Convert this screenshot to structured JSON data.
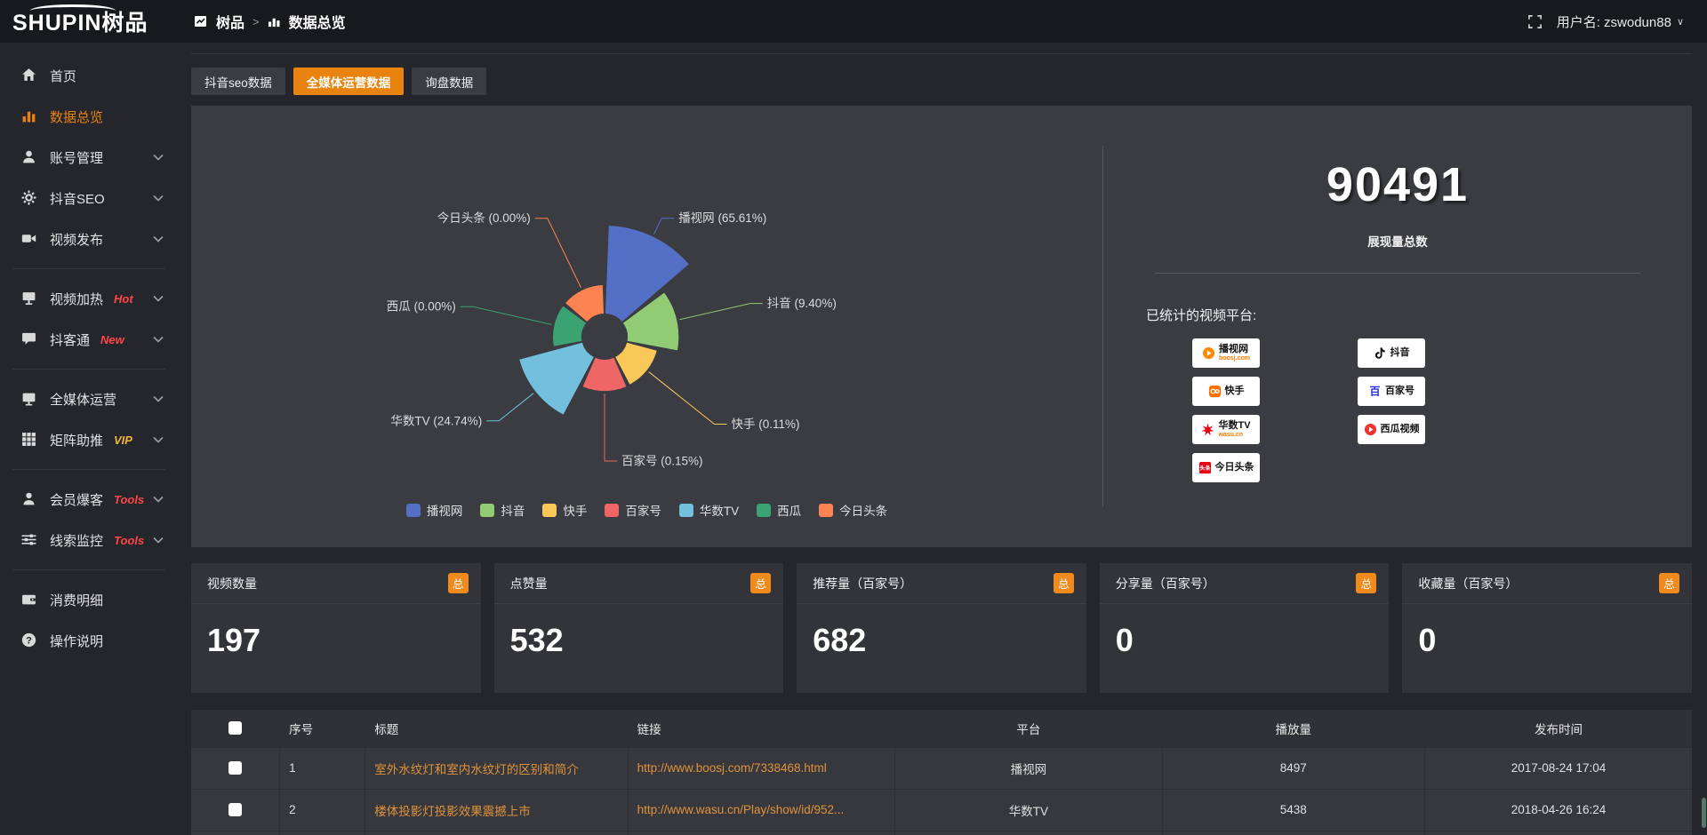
{
  "topbar": {
    "logo": "SHUPIN树品",
    "breadcrumb_root": "树品",
    "breadcrumb_current": "数据总览",
    "username_label": "用户名: zswodun88"
  },
  "sidebar": {
    "items": [
      {
        "label": "首页",
        "icon": "home-icon",
        "active": false,
        "expandable": false
      },
      {
        "label": "数据总览",
        "icon": "bar-chart-icon",
        "active": true,
        "expandable": false
      },
      {
        "label": "账号管理",
        "icon": "user-icon",
        "expandable": true
      },
      {
        "label": "抖音SEO",
        "icon": "gear-icon",
        "expandable": true
      },
      {
        "label": "视频发布",
        "icon": "video-icon",
        "expandable": true,
        "divider_after": true
      },
      {
        "label": "视频加热",
        "icon": "screen-icon",
        "tag": "Hot",
        "tag_color": "#ff4545",
        "expandable": true
      },
      {
        "label": "抖客通",
        "icon": "chat-icon",
        "tag": "New",
        "tag_color": "#ff4545",
        "expandable": true,
        "divider_after": true
      },
      {
        "label": "全媒体运营",
        "icon": "monitor-icon",
        "expandable": true
      },
      {
        "label": "矩阵助推",
        "icon": "grid-icon",
        "tag": "VIP",
        "tag_color": "#f0b63c",
        "expandable": true,
        "divider_after": true
      },
      {
        "label": "会员爆客",
        "icon": "person-icon",
        "tag": "Tools",
        "tag_color": "#ff4545",
        "expandable": true
      },
      {
        "label": "线索监控",
        "icon": "sliders-icon",
        "tag": "Tools",
        "tag_color": "#ff4545",
        "expandable": true,
        "divider_after": true
      },
      {
        "label": "消费明细",
        "icon": "wallet-icon",
        "expandable": false
      },
      {
        "label": "操作说明",
        "icon": "question-icon",
        "expandable": false
      }
    ]
  },
  "tabs": [
    {
      "label": "抖音seo数据",
      "active": false
    },
    {
      "label": "全媒体运营数据",
      "active": true
    },
    {
      "label": "询盘数据",
      "active": false
    }
  ],
  "chart_data": {
    "type": "pie",
    "variant": "nightingale-rose",
    "legend_position": "bottom",
    "label_format": "name (percent%)",
    "items": [
      {
        "name": "播视网",
        "percent": 65.61,
        "color": "#5470c6"
      },
      {
        "name": "抖音",
        "percent": 9.4,
        "color": "#91cc75"
      },
      {
        "name": "快手",
        "percent": 0.11,
        "color": "#fac858"
      },
      {
        "name": "百家号",
        "percent": 0.15,
        "color": "#ee6666"
      },
      {
        "name": "华数TV",
        "percent": 24.74,
        "color": "#73c0de"
      },
      {
        "name": "西瓜",
        "percent": 0.0,
        "color": "#3ba272"
      },
      {
        "name": "今日头条",
        "percent": 0.0,
        "color": "#fc8452"
      }
    ],
    "legend": [
      "播视网",
      "抖音",
      "快手",
      "百家号",
      "华数TV",
      "西瓜",
      "今日头条"
    ]
  },
  "summary": {
    "total_value": "90491",
    "total_label": "展现量总数",
    "platforms_label": "已统计的视频平台:",
    "platforms": [
      {
        "name": "播视网",
        "sub": "boosj.com",
        "icon": "boosj-logo-icon"
      },
      {
        "name": "抖音",
        "sub": "",
        "icon": "douyin-logo-icon"
      },
      {
        "name": "快手",
        "sub": "",
        "icon": "kuaishou-logo-icon"
      },
      {
        "name": "百家号",
        "sub": "",
        "icon": "baijiahao-logo-icon"
      },
      {
        "name": "华数TV",
        "sub": "wasu.cn",
        "icon": "wasu-logo-icon"
      },
      {
        "name": "西瓜视频",
        "sub": "",
        "icon": "xigua-logo-icon"
      },
      {
        "name": "今日头条",
        "sub": "",
        "icon": "toutiao-logo-icon"
      }
    ]
  },
  "stat_cards": [
    {
      "title": "视频数量",
      "badge": "总",
      "value": "197"
    },
    {
      "title": "点赞量",
      "badge": "总",
      "value": "532"
    },
    {
      "title": "推荐量（百家号）",
      "badge": "总",
      "value": "682"
    },
    {
      "title": "分享量（百家号）",
      "badge": "总",
      "value": "0"
    },
    {
      "title": "收藏量（百家号）",
      "badge": "总",
      "value": "0"
    }
  ],
  "table": {
    "headers": [
      "序号",
      "标题",
      "链接",
      "平台",
      "播放量",
      "发布时间"
    ],
    "rows": [
      {
        "num": "1",
        "title": "室外水纹灯和室内水纹灯的区别和简介",
        "link": "http://www.boosj.com/7338468.html",
        "platform": "播视网",
        "views": "8497",
        "time": "2017-08-24 17:04"
      },
      {
        "num": "2",
        "title": "楼体投影灯投影效果震撼上市",
        "link": "http://www.wasu.cn/Play/show/id/952...",
        "platform": "华数TV",
        "views": "5438",
        "time": "2018-04-26 16:24"
      }
    ]
  },
  "colors": {
    "accent": "#e8830f",
    "link": "#e0923a",
    "badge": "#f08a1c"
  }
}
